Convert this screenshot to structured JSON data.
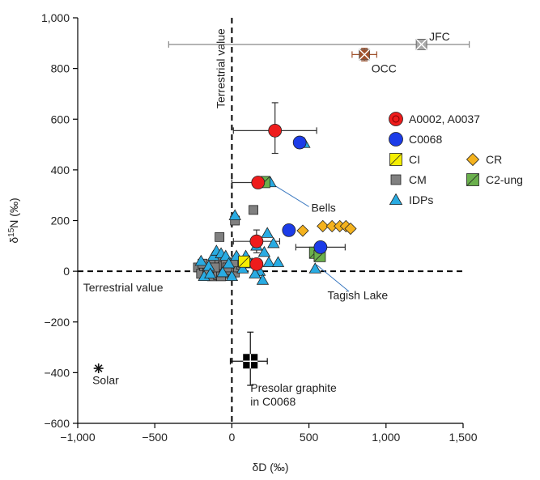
{
  "chart_data": {
    "type": "scatter",
    "xlabel": "δD (‰)",
    "ylabel": "δ15N (‰)",
    "xlim": [
      -1000,
      1500
    ],
    "ylim": [
      -600,
      1000
    ],
    "x_ticks": [
      -1000,
      -500,
      0,
      500,
      1000,
      1500
    ],
    "x_tick_labels": [
      "−1,000",
      "−500",
      "0",
      "500",
      "1,000",
      "1,500"
    ],
    "y_ticks": [
      -600,
      -400,
      -200,
      0,
      200,
      400,
      600,
      800,
      1000
    ],
    "y_tick_labels": [
      "−600",
      "−400",
      "−200",
      "0",
      "200",
      "400",
      "600",
      "800",
      "1,000"
    ],
    "grid": false,
    "legend_position": "right",
    "reference_lines": [
      {
        "axis": "x",
        "value": 0,
        "label": "Terrestrial value",
        "style": "dashed"
      },
      {
        "axis": "y",
        "value": 0,
        "label": "Terrestrial value",
        "style": "dashed"
      }
    ],
    "series": [
      {
        "name": "A0002, A0037",
        "marker": "circle",
        "color": "#ee1c1c",
        "points": [
          {
            "x": 280,
            "y": 555,
            "xerr": [
              270,
              270
            ],
            "yerr": [
              90,
              110
            ]
          },
          {
            "x": 170,
            "y": 350,
            "xerr": [
              170,
              0
            ],
            "yerr": [
              0,
              0
            ]
          },
          {
            "x": 160,
            "y": 118,
            "xerr": [
              150,
              150
            ],
            "yerr": [
              45,
              45
            ]
          },
          {
            "x": 160,
            "y": 28,
            "xerr": [
              0,
              0
            ],
            "yerr": [
              0,
              0
            ]
          }
        ]
      },
      {
        "name": "C0068",
        "marker": "circle",
        "color": "#1c3ce8",
        "points": [
          {
            "x": 440,
            "y": 508,
            "xerr": [
              0,
              0
            ],
            "yerr": [
              0,
              0
            ]
          },
          {
            "x": 370,
            "y": 162,
            "xerr": [
              0,
              0
            ],
            "yerr": [
              0,
              0
            ]
          },
          {
            "x": 575,
            "y": 95,
            "xerr": [
              160,
              160
            ],
            "yerr": [
              0,
              0
            ]
          }
        ]
      },
      {
        "name": "CI",
        "marker": "square-diag",
        "color": "#f5ee00",
        "points": [
          {
            "x": 80,
            "y": 38
          }
        ]
      },
      {
        "name": "CR",
        "marker": "diamond",
        "color": "#f4b21e",
        "points": [
          {
            "x": 460,
            "y": 160
          },
          {
            "x": 590,
            "y": 178
          },
          {
            "x": 650,
            "y": 178
          },
          {
            "x": 700,
            "y": 178
          },
          {
            "x": 740,
            "y": 178
          },
          {
            "x": 770,
            "y": 168
          }
        ]
      },
      {
        "name": "CM",
        "marker": "square",
        "color": "#808080",
        "points": [
          {
            "x": -220,
            "y": 15
          },
          {
            "x": -200,
            "y": -10
          },
          {
            "x": -180,
            "y": 20
          },
          {
            "x": -160,
            "y": -5
          },
          {
            "x": -140,
            "y": 10
          },
          {
            "x": -130,
            "y": -20
          },
          {
            "x": -120,
            "y": 30
          },
          {
            "x": -100,
            "y": 10
          },
          {
            "x": -90,
            "y": -15
          },
          {
            "x": -80,
            "y": 45
          },
          {
            "x": -60,
            "y": 20
          },
          {
            "x": -50,
            "y": -10
          },
          {
            "x": -40,
            "y": 30
          },
          {
            "x": -20,
            "y": 5
          },
          {
            "x": 0,
            "y": 20
          },
          {
            "x": 20,
            "y": -5
          },
          {
            "x": 40,
            "y": 15
          },
          {
            "x": 60,
            "y": 25
          },
          {
            "x": -150,
            "y": 5
          },
          {
            "x": -70,
            "y": -20
          },
          {
            "x": -110,
            "y": 15
          },
          {
            "x": -30,
            "y": 15
          },
          {
            "x": -190,
            "y": 30
          },
          {
            "x": 10,
            "y": 35
          },
          {
            "x": -80,
            "y": 135
          },
          {
            "x": 20,
            "y": 200
          },
          {
            "x": 140,
            "y": 242
          }
        ]
      },
      {
        "name": "C2-ung",
        "marker": "square-diag",
        "color": "#6ab04c",
        "points": [
          {
            "x": 210,
            "y": 352
          },
          {
            "x": 540,
            "y": 73
          },
          {
            "x": 570,
            "y": 60
          }
        ]
      },
      {
        "name": "IDPs",
        "marker": "triangle",
        "color": "#29abe2",
        "points": [
          {
            "x": 20,
            "y": 220
          },
          {
            "x": 250,
            "y": 350
          },
          {
            "x": 470,
            "y": 505
          },
          {
            "x": 230,
            "y": 150
          },
          {
            "x": 270,
            "y": 110
          },
          {
            "x": 210,
            "y": 75
          },
          {
            "x": 240,
            "y": 35
          },
          {
            "x": 130,
            "y": 30
          },
          {
            "x": 180,
            "y": 0
          },
          {
            "x": 200,
            "y": -35
          },
          {
            "x": 150,
            "y": -10
          },
          {
            "x": 300,
            "y": 35
          },
          {
            "x": 540,
            "y": 10
          },
          {
            "x": -200,
            "y": 40
          },
          {
            "x": -150,
            "y": 20
          },
          {
            "x": -120,
            "y": 60
          },
          {
            "x": -100,
            "y": 80
          },
          {
            "x": -70,
            "y": 70
          },
          {
            "x": -40,
            "y": 60
          },
          {
            "x": -20,
            "y": 30
          },
          {
            "x": 30,
            "y": 60
          },
          {
            "x": 90,
            "y": 60
          },
          {
            "x": 110,
            "y": 40
          },
          {
            "x": 70,
            "y": 10
          },
          {
            "x": -180,
            "y": -20
          },
          {
            "x": -140,
            "y": -10
          },
          {
            "x": 0,
            "y": -20
          },
          {
            "x": 160,
            "y": 100
          },
          {
            "x": -60,
            "y": -5
          }
        ]
      }
    ],
    "other_points": [
      {
        "name": "JFC",
        "marker": "square-x",
        "color": "#aaaaaa",
        "x": 1230,
        "y": 895,
        "xerr": [
          1640,
          310
        ],
        "yerr": [
          0,
          0
        ]
      },
      {
        "name": "OCC",
        "marker": "square-x",
        "color": "#a0522d",
        "x": 860,
        "y": 855,
        "xerr": [
          80,
          80
        ],
        "yerr": [
          25,
          25
        ]
      },
      {
        "name": "Solar",
        "marker": "asterisk",
        "color": "#111111",
        "x": -865,
        "y": -383
      },
      {
        "name": "Presolar graphite in C0068",
        "marker": "square-cross",
        "color": "#000000",
        "x": 120,
        "y": -355,
        "xerr": [
          130,
          110
        ],
        "yerr": [
          95,
          115
        ]
      }
    ],
    "annotations": [
      {
        "text": "Bells",
        "target": [
          260,
          345
        ]
      },
      {
        "text": "Tagish Lake",
        "target": [
          550,
          25
        ]
      },
      {
        "text": "JFC"
      },
      {
        "text": "OCC"
      },
      {
        "text": "Solar"
      },
      {
        "text": "Presolar graphite"
      },
      {
        "text": "in C0068"
      }
    ]
  }
}
